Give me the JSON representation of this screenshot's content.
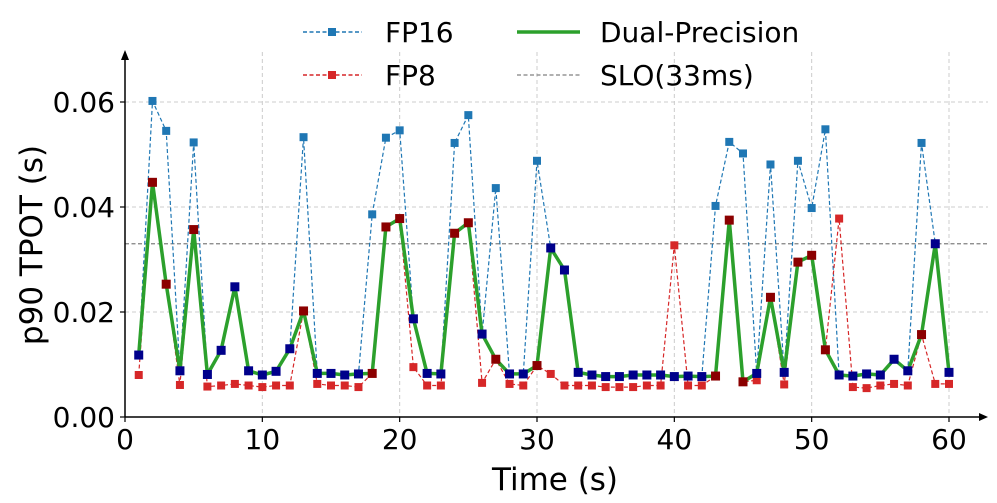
{
  "chart_data": {
    "type": "line",
    "xlabel": "Time (s)",
    "ylabel": "p90 TPOT (s)",
    "xlim": [
      0,
      63
    ],
    "ylim": [
      0,
      0.07
    ],
    "xticks": [
      0,
      10,
      20,
      30,
      40,
      50,
      60
    ],
    "xtick_labels": [
      "0",
      "10",
      "20",
      "30",
      "40",
      "50",
      "60"
    ],
    "yticks": [
      0.0,
      0.02,
      0.04,
      0.06
    ],
    "ytick_labels": [
      "0.00",
      "0.02",
      "0.04",
      "0.06"
    ],
    "grid": true,
    "legend_position": "top",
    "x": [
      1,
      2,
      3,
      4,
      5,
      6,
      7,
      8,
      9,
      10,
      11,
      12,
      13,
      14,
      15,
      16,
      17,
      18,
      19,
      20,
      21,
      22,
      23,
      24,
      25,
      26,
      27,
      28,
      29,
      30,
      31,
      32,
      33,
      34,
      35,
      36,
      37,
      38,
      39,
      40,
      41,
      42,
      43,
      44,
      45,
      46,
      47,
      48,
      49,
      50,
      51,
      52,
      53,
      54,
      55,
      56,
      57,
      58,
      59,
      60
    ],
    "series": [
      {
        "name": "FP16",
        "style": "dashed",
        "marker": "square",
        "color": "#1f77b4",
        "values": [
          0.0118,
          0.0602,
          0.0545,
          0.0088,
          0.0523,
          0.0081,
          0.0127,
          0.0248,
          0.0088,
          0.008,
          0.0087,
          0.013,
          0.0533,
          0.0083,
          0.0083,
          0.008,
          0.0082,
          0.0386,
          0.0532,
          0.0546,
          0.0187,
          0.0083,
          0.0082,
          0.0522,
          0.0575,
          0.0158,
          0.0436,
          0.0082,
          0.0082,
          0.0488,
          0.0322,
          0.028,
          0.0085,
          0.008,
          0.0077,
          0.0077,
          0.008,
          0.008,
          0.008,
          0.0077,
          0.0078,
          0.0077,
          0.0402,
          0.0524,
          0.0502,
          0.0083,
          0.0481,
          0.0085,
          0.0488,
          0.0398,
          0.0548,
          0.008,
          0.0078,
          0.0082,
          0.008,
          0.011,
          0.0088,
          0.0522,
          0.033,
          0.0085
        ]
      },
      {
        "name": "FP8",
        "style": "dashed",
        "marker": "square",
        "color": "#d62728",
        "values": [
          0.008,
          0.0447,
          0.0253,
          0.0061,
          0.0357,
          0.0058,
          0.006,
          0.0063,
          0.006,
          0.0057,
          0.006,
          0.006,
          0.0202,
          0.0063,
          0.006,
          0.006,
          0.0057,
          0.0083,
          0.0362,
          0.0378,
          0.0095,
          0.006,
          0.006,
          0.035,
          0.037,
          0.0065,
          0.011,
          0.0063,
          0.006,
          0.0098,
          0.0082,
          0.006,
          0.006,
          0.006,
          0.0057,
          0.0057,
          0.0057,
          0.006,
          0.006,
          0.0327,
          0.006,
          0.006,
          0.0078,
          0.0375,
          0.0067,
          0.007,
          0.0228,
          0.0062,
          0.0295,
          0.0308,
          0.0128,
          0.0378,
          0.0057,
          0.0055,
          0.006,
          0.0063,
          0.006,
          0.0157,
          0.0063,
          0.0063
        ]
      },
      {
        "name": "Dual-Precision",
        "style": "solid",
        "marker": "square",
        "color": "#2ca02c",
        "values": [
          0.0118,
          0.0447,
          0.0253,
          0.0088,
          0.0357,
          0.0081,
          0.0127,
          0.0248,
          0.0088,
          0.008,
          0.0087,
          0.013,
          0.0202,
          0.0083,
          0.0083,
          0.008,
          0.0082,
          0.0083,
          0.0362,
          0.0378,
          0.0187,
          0.0083,
          0.0082,
          0.035,
          0.037,
          0.0158,
          0.011,
          0.0082,
          0.0082,
          0.0098,
          0.0322,
          0.028,
          0.0085,
          0.008,
          0.0077,
          0.0077,
          0.008,
          0.008,
          0.008,
          0.0077,
          0.0078,
          0.0077,
          0.0078,
          0.0375,
          0.0067,
          0.0083,
          0.0228,
          0.0085,
          0.0295,
          0.0308,
          0.0128,
          0.008,
          0.0078,
          0.0082,
          0.008,
          0.011,
          0.0088,
          0.0157,
          0.033,
          0.0085
        ]
      }
    ],
    "reference_line": {
      "name": "SLO(33ms)",
      "value": 0.033,
      "style": "dashed",
      "color": "#808080"
    },
    "marker_colors": {
      "fp16_mode": "#00008b",
      "fp8_mode": "#8b0000"
    },
    "legend": [
      "FP16",
      "FP8",
      "Dual-Precision",
      "SLO(33ms)"
    ]
  }
}
